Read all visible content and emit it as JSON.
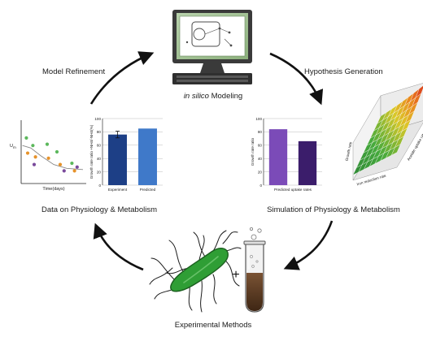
{
  "labels": {
    "model_refinement": "Model Refinement",
    "hypothesis_generation": "Hypothesis Generation",
    "modeling_italic": "in silico",
    "modeling_rest": " Modeling",
    "data_physiology": "Data on Physiology & Metabolism",
    "simulation_physiology": "Simulation of Physiology & Metabolism",
    "experimental_methods": "Experimental Methods",
    "plus": "+"
  },
  "colors": {
    "arrow": "#111111",
    "monitor_frame": "#3a3a3a",
    "monitor_screen": "#9bbf8f",
    "bar_dark_blue": "#1d3f86",
    "bar_light_blue": "#3f79c9",
    "bar_purple": "#7b4bb8",
    "bar_dark_purple": "#3b1d6b",
    "bacterium": "#2f9e35",
    "tube_liquid": "#5a3a22"
  },
  "icons": [
    "computer-icon",
    "bacterium-icon",
    "test-tube-icon"
  ],
  "chart_data": [
    {
      "type": "scatter",
      "title": "",
      "xlabel": "Time(days)",
      "ylabel": "U",
      "ylabel_sub": "m",
      "series": [
        {
          "color": "#5cb85c",
          "points": [
            [
              0.08,
              0.72
            ],
            [
              0.18,
              0.6
            ],
            [
              0.4,
              0.62
            ],
            [
              0.55,
              0.5
            ],
            [
              0.78,
              0.32
            ]
          ]
        },
        {
          "color": "#e6922a",
          "points": [
            [
              0.1,
              0.48
            ],
            [
              0.22,
              0.42
            ],
            [
              0.42,
              0.4
            ],
            [
              0.6,
              0.3
            ],
            [
              0.82,
              0.2
            ]
          ]
        },
        {
          "color": "#7a4a9c",
          "points": [
            [
              0.2,
              0.3
            ],
            [
              0.66,
              0.2
            ],
            [
              0.86,
              0.26
            ]
          ]
        }
      ],
      "fit_curve": [
        [
          0.02,
          0.6
        ],
        [
          0.15,
          0.56
        ],
        [
          0.3,
          0.44
        ],
        [
          0.5,
          0.3
        ],
        [
          0.7,
          0.24
        ],
        [
          0.95,
          0.22
        ]
      ]
    },
    {
      "type": "bar",
      "title": "",
      "ylabel": "Growth rate ratio +NH4/-NH4(%)",
      "ylim": [
        0,
        100
      ],
      "yticks": [
        "0",
        "20",
        "40",
        "60",
        "80",
        "100"
      ],
      "categories": [
        "Experiment",
        "Predicted"
      ],
      "values": [
        76,
        85
      ],
      "error": [
        5,
        0
      ]
    },
    {
      "type": "bar",
      "title": "",
      "ylabel": "Growth rate ratio",
      "ylim": [
        0,
        100
      ],
      "yticks": [
        "0",
        "20",
        "40",
        "60",
        "80",
        "100"
      ],
      "xlabel": "Predicted uptake rates",
      "categories": [
        "",
        ""
      ],
      "values": [
        84,
        66
      ]
    },
    {
      "type": "surface",
      "title": "",
      "zlabel": "Growth rate",
      "xlabel": "Iron reduction rate",
      "ylabel": "Acetate uptake rate",
      "grid": 8
    }
  ]
}
